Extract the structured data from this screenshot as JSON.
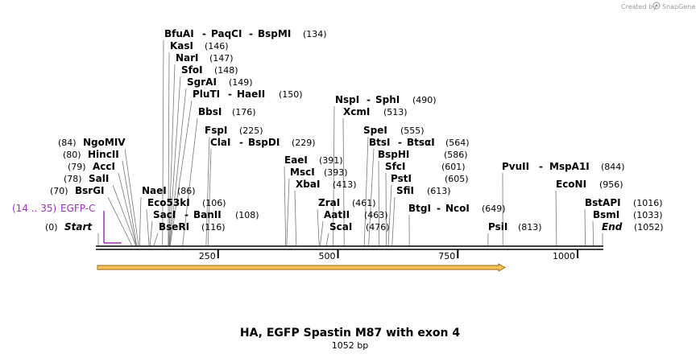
{
  "credit": {
    "prefix": "Created by",
    "brand": "SnapGene"
  },
  "map": {
    "title": "HA, EGFP Spastin M87 with exon 4",
    "length_label": "1052 bp",
    "length": 1052,
    "ticks": [
      {
        "value": 250,
        "label": "250"
      },
      {
        "value": 500,
        "label": "500"
      },
      {
        "value": 750,
        "label": "750"
      },
      {
        "value": 1000,
        "label": "1000"
      }
    ],
    "start": {
      "name": "Start",
      "pos": "(0)"
    },
    "end": {
      "name": "End",
      "pos": "(1052)"
    },
    "feature": {
      "name": "EGFP-C",
      "range": "(14 .. 35)",
      "from": 14,
      "to": 35
    }
  },
  "sites": {
    "bfuai": {
      "name": "BfuAI",
      "site": 134
    },
    "paqci": {
      "name": "PaqCI",
      "site": 134
    },
    "bspmi": {
      "name": "BspMI",
      "pos": "(134)",
      "site": 134
    },
    "kasi": {
      "name": "KasI",
      "pos": "(146)",
      "site": 146
    },
    "nari": {
      "name": "NarI",
      "pos": "(147)",
      "site": 147
    },
    "sfoi": {
      "name": "SfoI",
      "pos": "(148)",
      "site": 148
    },
    "sgrai": {
      "name": "SgrAI",
      "pos": "(149)",
      "site": 149
    },
    "pluti": {
      "name": "PluTI",
      "site": 150
    },
    "haeii": {
      "name": "HaeII",
      "pos": "(150)",
      "site": 150
    },
    "bbsi": {
      "name": "BbsI",
      "pos": "(176)",
      "site": 176
    },
    "fspi": {
      "name": "FspI",
      "pos": "(225)",
      "site": 225
    },
    "clai": {
      "name": "ClaI",
      "site": 229
    },
    "bspdi": {
      "name": "BspDI",
      "pos": "(229)",
      "site": 229
    },
    "ngomiv": {
      "name": "NgoMIV",
      "pos": "(84)",
      "site": 84
    },
    "hincii": {
      "name": "HincII",
      "pos": "(80)",
      "site": 80
    },
    "acci": {
      "name": "AccI",
      "pos": "(79)",
      "site": 79
    },
    "sali": {
      "name": "SalI",
      "pos": "(78)",
      "site": 78
    },
    "bsrgi": {
      "name": "BsrGI",
      "pos": "(70)",
      "site": 70
    },
    "naei": {
      "name": "NaeI",
      "pos": "(86)",
      "site": 86
    },
    "eco53ki": {
      "name": "Eco53kI",
      "pos": "(106)",
      "site": 106
    },
    "saci": {
      "name": "SacI",
      "site": 108
    },
    "banii": {
      "name": "BanII",
      "pos": "(108)",
      "site": 108
    },
    "bseri": {
      "name": "BseRI",
      "pos": "(116)",
      "site": 116
    },
    "nspi": {
      "name": "NspI",
      "site": 490
    },
    "sphi": {
      "name": "SphI",
      "pos": "(490)",
      "site": 490
    },
    "xcmi": {
      "name": "XcmI",
      "pos": "(513)",
      "site": 513
    },
    "eaei": {
      "name": "EaeI",
      "pos": "(391)",
      "site": 391
    },
    "msci": {
      "name": "MscI",
      "pos": "(393)",
      "site": 393
    },
    "xbai": {
      "name": "XbaI",
      "pos": "(413)",
      "site": 413
    },
    "zrai": {
      "name": "ZraI",
      "pos": "(461)",
      "site": 461
    },
    "aatii": {
      "name": "AatII",
      "pos": "(463)",
      "site": 463
    },
    "scai": {
      "name": "ScaI",
      "pos": "(476)",
      "site": 476
    },
    "spei": {
      "name": "SpeI",
      "pos": "(555)",
      "site": 555
    },
    "btsi": {
      "name": "BtsI",
      "site": 564
    },
    "btsai": {
      "name": "BtsαI",
      "pos": "(564)",
      "site": 564
    },
    "bsphi": {
      "name": "BspHI",
      "pos": "(586)",
      "site": 586
    },
    "sfci": {
      "name": "SfcI",
      "pos": "(601)",
      "site": 601
    },
    "psti": {
      "name": "PstI",
      "pos": "(605)",
      "site": 605
    },
    "sfii": {
      "name": "SfiI",
      "pos": "(613)",
      "site": 613
    },
    "btgi": {
      "name": "BtgI",
      "site": 649
    },
    "ncoi": {
      "name": "NcoI",
      "pos": "(649)",
      "site": 649
    },
    "psii": {
      "name": "PsiI",
      "pos": "(813)",
      "site": 813
    },
    "pvuii": {
      "name": "PvuII",
      "site": 844
    },
    "mspa1i": {
      "name": "MspA1I",
      "pos": "(844)",
      "site": 844
    },
    "econi": {
      "name": "EcoNI",
      "pos": "(956)",
      "site": 956
    },
    "bstapi": {
      "name": "BstAPI",
      "pos": "(1016)",
      "site": 1016
    },
    "bsmi": {
      "name": "BsmI",
      "pos": "(1033)",
      "site": 1033
    }
  },
  "colors": {
    "feature": "#9b2fc6",
    "arrow_fill": "#f5c35a",
    "arrow_stroke": "#a0600a",
    "backbone": "#000000"
  }
}
